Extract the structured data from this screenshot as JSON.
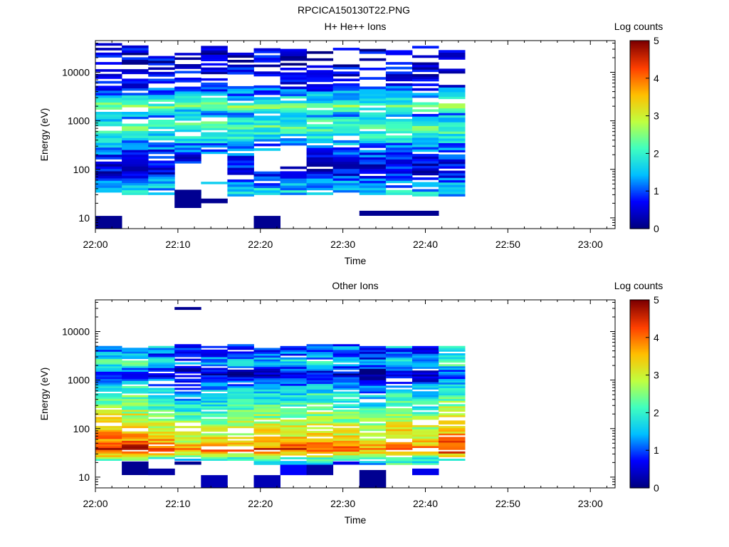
{
  "figure_title": "RPCICA150130T22.PNG",
  "colormap_stops": [
    "#00007f",
    "#0000ff",
    "#00bfff",
    "#40ffbf",
    "#bfff40",
    "#ffbf00",
    "#ff4000",
    "#7f0000"
  ],
  "chart_data": [
    {
      "type": "heatmap",
      "title": "H+ He++ Ions",
      "xlabel": "Time",
      "ylabel": "Energy (eV)",
      "colorbar_label": "Log counts",
      "y_scale": "log",
      "ylim": [
        6,
        45000
      ],
      "xlim": [
        "22:00",
        "23:03"
      ],
      "x_ticks": [
        "22:00",
        "22:10",
        "22:20",
        "22:30",
        "22:40",
        "22:50",
        "23:00"
      ],
      "y_ticks": [
        {
          "value": 10,
          "label": "10"
        },
        {
          "value": 100,
          "label": "100"
        },
        {
          "value": 1000,
          "label": "1000"
        },
        {
          "value": 10000,
          "label": "10000"
        }
      ],
      "colorbar_ticks": [
        "0",
        "1",
        "2",
        "3",
        "4",
        "5"
      ],
      "clim": [
        0,
        5
      ],
      "time_bins": [
        "22:01.6",
        "22:04.8",
        "22:08.0",
        "22:11.2",
        "22:14.4",
        "22:17.6",
        "22:20.8",
        "22:24.0",
        "22:27.2",
        "22:30.4",
        "22:33.6",
        "22:36.8",
        "22:40.0",
        "22:43.2"
      ],
      "bin_width_minutes": 3.2,
      "profile": [
        {
          "e": 11000,
          "v": 0.5
        },
        {
          "e": 5000,
          "v": 0.9
        },
        {
          "e": 3500,
          "v": 1.3
        },
        {
          "e": 2400,
          "v": 2.0
        },
        {
          "e": 2000,
          "v": 2.4
        },
        {
          "e": 1600,
          "v": 1.7
        },
        {
          "e": 1300,
          "v": 1.3
        },
        {
          "e": 1000,
          "v": 1.9
        },
        {
          "e": 800,
          "v": 2.2
        },
        {
          "e": 600,
          "v": 2.0
        },
        {
          "e": 450,
          "v": 1.7
        },
        {
          "e": 330,
          "v": 1.3
        },
        {
          "e": 220,
          "v": 0.9
        },
        {
          "e": 140,
          "v": 0.6
        },
        {
          "e": 90,
          "v": 0.6
        },
        {
          "e": 60,
          "v": 1.1
        },
        {
          "e": 45,
          "v": 1.4
        },
        {
          "e": 35,
          "v": 1.6
        }
      ],
      "columns": [
        {
          "emin": 30,
          "emax": 40000,
          "extra": [
            {
              "lo": 6,
              "hi": 11,
              "v": 0.1
            }
          ],
          "gaps": []
        },
        {
          "emin": 30,
          "emax": 40000,
          "extra": [],
          "gaps": []
        },
        {
          "emin": 30,
          "emax": 30000,
          "extra": [],
          "gaps": []
        },
        {
          "emin": 30,
          "emax": 28000,
          "extra": [
            {
              "lo": 16,
              "hi": 38,
              "v": 0.1
            }
          ],
          "gaps": [
            {
              "lo": 38,
              "hi": 130
            }
          ]
        },
        {
          "emin": 50,
          "emax": 35000,
          "extra": [
            {
              "lo": 20,
              "hi": 25,
              "v": 0.1
            }
          ],
          "gaps": [
            {
              "lo": 55,
              "hi": 200
            }
          ]
        },
        {
          "emin": 28,
          "emax": 40000,
          "extra": [],
          "gaps": []
        },
        {
          "emin": 30,
          "emax": 35000,
          "extra": [
            {
              "lo": 6,
              "hi": 11,
              "v": 0.1
            }
          ],
          "gaps": [
            {
              "lo": 100,
              "hi": 250
            }
          ]
        },
        {
          "emin": 30,
          "emax": 38000,
          "extra": [],
          "gaps": [
            {
              "lo": 120,
              "hi": 300
            }
          ]
        },
        {
          "emin": 30,
          "emax": 38000,
          "extra": [],
          "gaps": []
        },
        {
          "emin": 30,
          "emax": 40000,
          "extra": [],
          "gaps": []
        },
        {
          "emin": 30,
          "emax": 38000,
          "extra": [
            {
              "lo": 11,
              "hi": 14,
              "v": 0.1
            }
          ],
          "gaps": []
        },
        {
          "emin": 30,
          "emax": 40000,
          "extra": [
            {
              "lo": 11,
              "hi": 14,
              "v": 0.1
            }
          ],
          "gaps": []
        },
        {
          "emin": 28,
          "emax": 35000,
          "extra": [
            {
              "lo": 11,
              "hi": 14,
              "v": 0.1
            }
          ],
          "gaps": []
        },
        {
          "emin": 28,
          "emax": 32000,
          "extra": [],
          "gaps": []
        }
      ]
    },
    {
      "type": "heatmap",
      "title": "Other Ions",
      "xlabel": "Time",
      "ylabel": "Energy (eV)",
      "colorbar_label": "Log counts",
      "y_scale": "log",
      "ylim": [
        6,
        45000
      ],
      "xlim": [
        "22:00",
        "23:03"
      ],
      "x_ticks": [
        "22:00",
        "22:10",
        "22:20",
        "22:30",
        "22:40",
        "22:50",
        "23:00"
      ],
      "y_ticks": [
        {
          "value": 10,
          "label": "10"
        },
        {
          "value": 100,
          "label": "100"
        },
        {
          "value": 1000,
          "label": "1000"
        },
        {
          "value": 10000,
          "label": "10000"
        }
      ],
      "colorbar_ticks": [
        "0",
        "1",
        "2",
        "3",
        "4",
        "5"
      ],
      "clim": [
        0,
        5
      ],
      "time_bins": [
        "22:01.6",
        "22:04.8",
        "22:08.0",
        "22:11.2",
        "22:14.4",
        "22:17.6",
        "22:20.8",
        "22:24.0",
        "22:27.2",
        "22:30.4",
        "22:33.6",
        "22:36.8",
        "22:40.0",
        "22:43.2"
      ],
      "bin_width_minutes": 3.2,
      "profile": [
        {
          "e": 5000,
          "v": 1.5
        },
        {
          "e": 4000,
          "v": 0.9
        },
        {
          "e": 3000,
          "v": 1.2
        },
        {
          "e": 2300,
          "v": 2.0
        },
        {
          "e": 1800,
          "v": 1.2
        },
        {
          "e": 1400,
          "v": 0.7
        },
        {
          "e": 1000,
          "v": 0.9
        },
        {
          "e": 700,
          "v": 1.6
        },
        {
          "e": 500,
          "v": 1.9
        },
        {
          "e": 350,
          "v": 2.1
        },
        {
          "e": 250,
          "v": 2.4
        },
        {
          "e": 180,
          "v": 2.7
        },
        {
          "e": 120,
          "v": 3.0
        },
        {
          "e": 80,
          "v": 3.3
        },
        {
          "e": 55,
          "v": 3.6
        },
        {
          "e": 45,
          "v": 4.0
        },
        {
          "e": 38,
          "v": 4.3
        },
        {
          "e": 32,
          "v": 3.7
        },
        {
          "e": 27,
          "v": 2.8
        },
        {
          "e": 24,
          "v": 2.0
        }
      ],
      "columns": [
        {
          "emin": 22,
          "emax": 5500,
          "extra": [],
          "gaps": [],
          "boost": 0.3
        },
        {
          "emin": 22,
          "emax": 5500,
          "extra": [
            {
              "lo": 11,
              "hi": 21,
              "v": 0.1
            }
          ],
          "gaps": [],
          "boost": 0.3
        },
        {
          "emin": 22,
          "emax": 5500,
          "extra": [
            {
              "lo": 11,
              "hi": 15,
              "v": 0.2
            }
          ],
          "gaps": [],
          "boost": 0.0
        },
        {
          "emin": 22,
          "emax": 5500,
          "extra": [
            {
              "lo": 18,
              "hi": 21,
              "v": 0.1
            },
            {
              "lo": 28000,
              "hi": 32000,
              "v": 0.1
            }
          ],
          "gaps": [],
          "boost": -0.5
        },
        {
          "emin": 22,
          "emax": 5500,
          "extra": [
            {
              "lo": 6,
              "hi": 11,
              "v": 0.3
            }
          ],
          "gaps": [],
          "boost": -0.3
        },
        {
          "emin": 22,
          "emax": 5500,
          "extra": [],
          "gaps": [],
          "boost": -0.2
        },
        {
          "emin": 18,
          "emax": 5500,
          "extra": [
            {
              "lo": 6,
              "hi": 11,
              "v": 0.3
            }
          ],
          "gaps": [],
          "boost": -0.1
        },
        {
          "emin": 18,
          "emax": 5500,
          "extra": [
            {
              "lo": 11,
              "hi": 18,
              "v": 0.7
            }
          ],
          "gaps": [],
          "boost": -0.1
        },
        {
          "emin": 18,
          "emax": 5500,
          "extra": [
            {
              "lo": 11,
              "hi": 18,
              "v": 0.2
            }
          ],
          "gaps": [],
          "boost": 0.0
        },
        {
          "emin": 22,
          "emax": 5500,
          "extra": [
            {
              "lo": 18,
              "hi": 21,
              "v": 0.6
            }
          ],
          "gaps": [],
          "boost": -0.2
        },
        {
          "emin": 18,
          "emax": 5500,
          "extra": [
            {
              "lo": 6,
              "hi": 14,
              "v": 0.1
            }
          ],
          "gaps": [],
          "boost": -0.5
        },
        {
          "emin": 18,
          "emax": 5500,
          "extra": [],
          "gaps": [],
          "boost": 0.0
        },
        {
          "emin": 18,
          "emax": 5500,
          "extra": [
            {
              "lo": 11,
              "hi": 15,
              "v": 0.6
            }
          ],
          "gaps": [],
          "boost": -0.3
        },
        {
          "emin": 22,
          "emax": 5500,
          "extra": [],
          "gaps": [],
          "boost": 0.3
        }
      ]
    }
  ]
}
